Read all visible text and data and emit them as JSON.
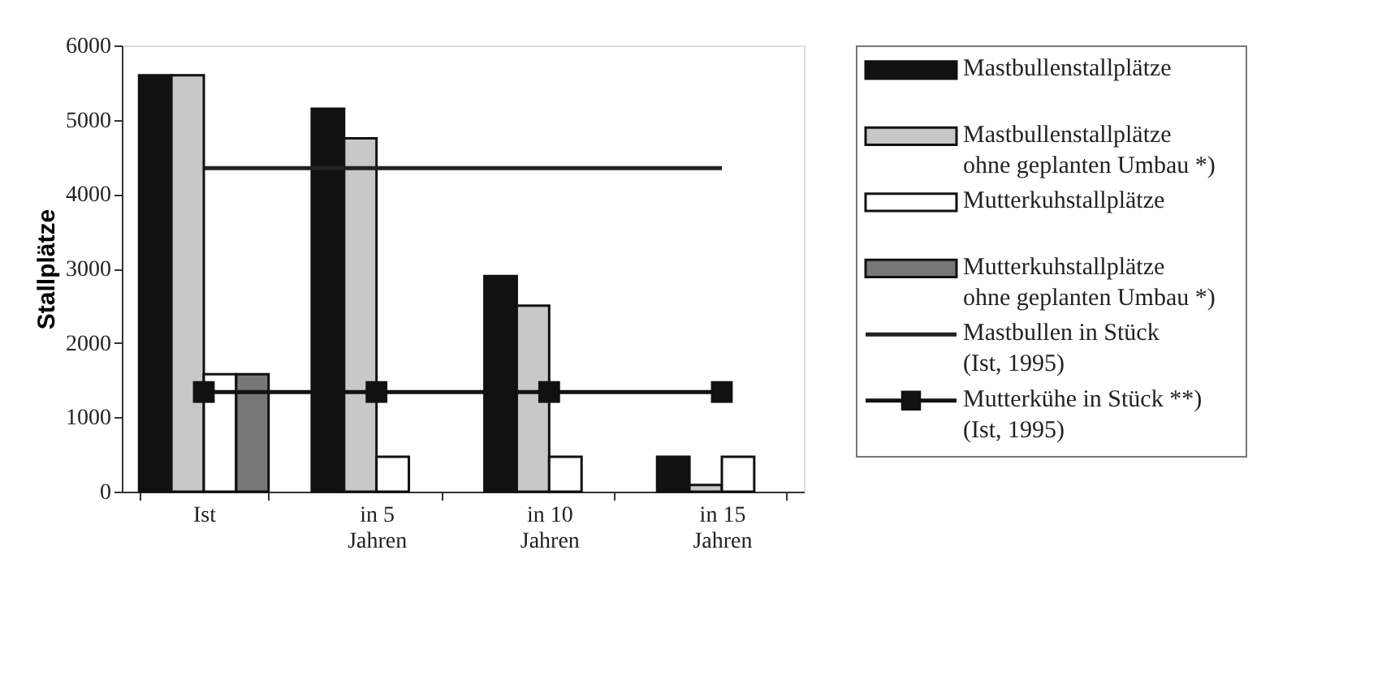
{
  "chart_data": {
    "type": "bar",
    "ylabel": "Stallplätze",
    "categories": [
      "Ist",
      "in 5 Jahren",
      "in 10 Jahren",
      "in 15 Jahren"
    ],
    "ylim": [
      0,
      6000
    ],
    "yticks": [
      0,
      {
        "value": 1000,
        "label": "1000"
      },
      {
        "value": 2000,
        "label": "2000"
      },
      {
        "value": 3000,
        "label": "3000"
      },
      {
        "value": 4000,
        "label": "4000"
      },
      {
        "value": 5000,
        "label": "5000"
      },
      {
        "value": 6000,
        "label": "6000"
      }
    ],
    "grid": false,
    "legend": "right",
    "series": [
      {
        "name": "Mastbullenstallplätze",
        "color": "#111111",
        "values": [
          5600,
          5150,
          2900,
          470
        ]
      },
      {
        "name": "Mastbullenstallplätze ohne geplanten Umbau *)",
        "color": "#c8c8c8",
        "values": [
          5600,
          4750,
          2500,
          90
        ]
      },
      {
        "name": "Mutterkuhstallplätze",
        "color": "#ffffff",
        "values": [
          1580,
          470,
          470,
          470
        ]
      },
      {
        "name": "Mutterkuhstallplätze ohne geplanten Umbau *)",
        "color": "#777777",
        "values": [
          1580,
          null,
          null,
          null
        ]
      },
      {
        "name": "Mastbullen in Stück (Ist, 1995)",
        "type": "line",
        "color": "#222222",
        "marker": "none",
        "values": [
          4350,
          4350,
          4350,
          4350
        ]
      },
      {
        "name": "Mutterkühe in Stück **) (Ist, 1995)",
        "type": "line",
        "color": "#111111",
        "marker": "square",
        "values": [
          1340,
          1340,
          1340,
          1340
        ]
      }
    ]
  }
}
